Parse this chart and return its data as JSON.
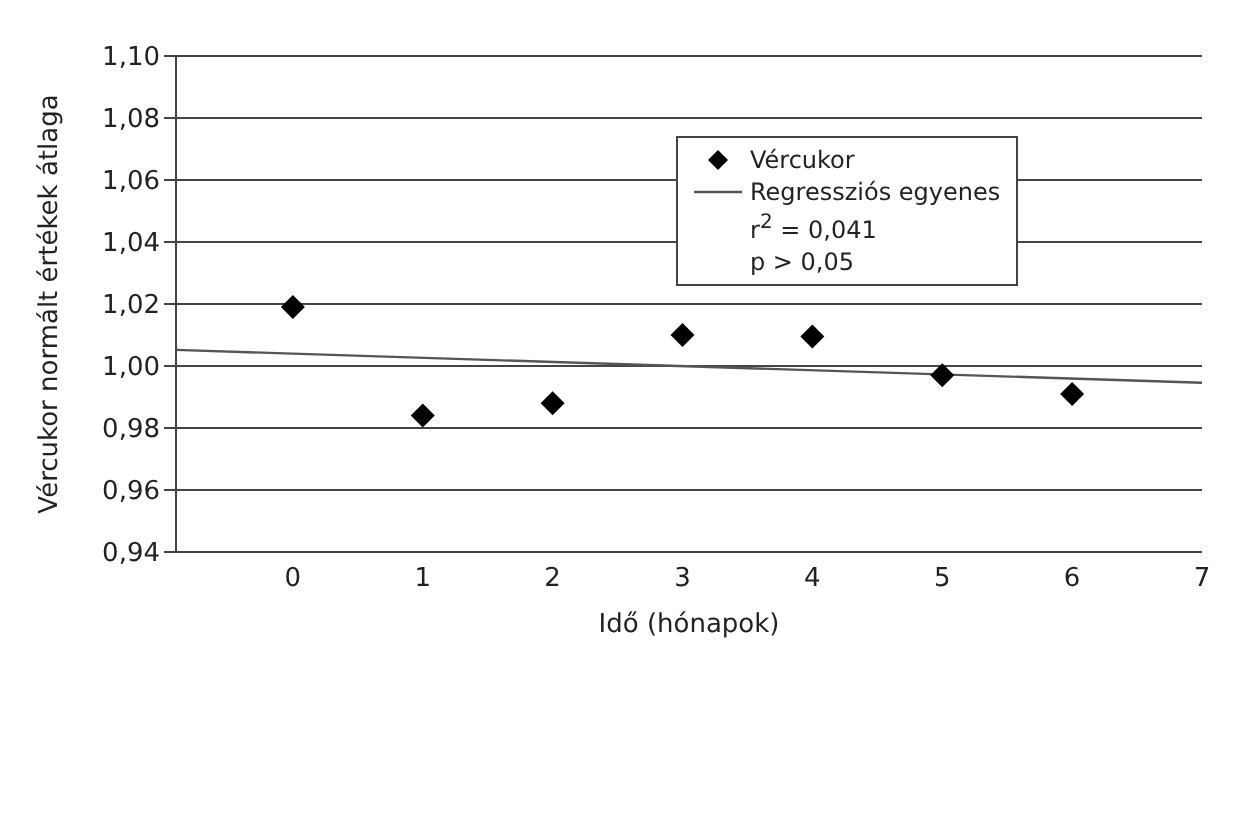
{
  "chart_data": {
    "type": "scatter",
    "xlabel": "Idő (hónapok)",
    "ylabel": "Vércukor normált értékek átlaga",
    "series": [
      {
        "name": "Vércukor",
        "color": "#000000",
        "marker": "diamond",
        "x": [
          0,
          1,
          2,
          3,
          4,
          5,
          6
        ],
        "values": [
          1.019,
          0.984,
          0.988,
          1.01,
          1.0095,
          0.997,
          0.991
        ]
      },
      {
        "name": "Regressziós egyenes",
        "type": "line",
        "color": "#555555",
        "marker": "none",
        "line_style": "solid",
        "x": [
          -0.9,
          7
        ],
        "values": [
          1.0052,
          0.9946
        ]
      }
    ],
    "annotations": [
      "r$^{2}$ = 0,041",
      "p > 0,05"
    ],
    "xlim": [
      -0.9,
      7
    ],
    "xticks": [
      0,
      1,
      2,
      3,
      4,
      5,
      6,
      7
    ],
    "ylim": [
      0.94,
      1.1
    ],
    "yticks": [
      {
        "value": 0.94,
        "label": "0,94"
      },
      {
        "value": 0.96,
        "label": "0,96"
      },
      {
        "value": 0.98,
        "label": "0,98"
      },
      {
        "value": 1.0,
        "label": "1,00"
      },
      {
        "value": 1.02,
        "label": "1,02"
      },
      {
        "value": 1.04,
        "label": "1,04"
      },
      {
        "value": 1.06,
        "label": "1,06"
      },
      {
        "value": 1.08,
        "label": "1,08"
      },
      {
        "value": 1.1,
        "label": "1,10"
      }
    ],
    "grid": "y",
    "legend": "top right"
  }
}
